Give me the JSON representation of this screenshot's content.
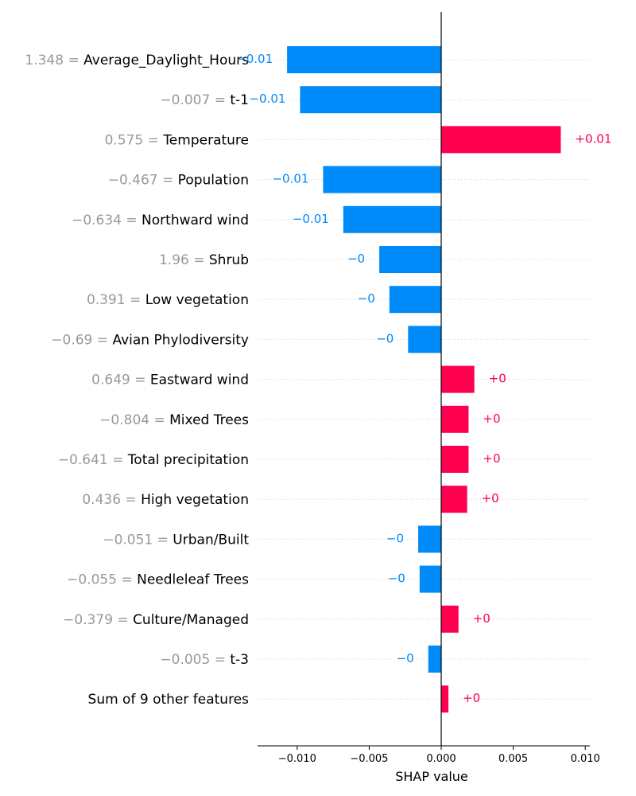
{
  "chart_data": {
    "type": "bar",
    "title": "",
    "xlabel": "SHAP value",
    "ylabel": "",
    "xlim": [
      -0.0128,
      0.0102
    ],
    "grid": "dotted horizontal",
    "xticks": [
      {
        "value": -0.01,
        "label": "−0.010"
      },
      {
        "value": -0.005,
        "label": "−0.005"
      },
      {
        "value": 0.0,
        "label": "0.000"
      },
      {
        "value": 0.005,
        "label": "0.005"
      },
      {
        "value": 0.01,
        "label": "0.010"
      }
    ],
    "colors": {
      "positive": "#ff0051",
      "negative": "#008bfb",
      "feature_value": "#999999",
      "label": "#000000",
      "grid": "#cccccc"
    },
    "rows": [
      {
        "value_text": "1.348 =",
        "feature": "Average_Daylight_Hours",
        "shap": -0.0107,
        "label": "−0.01"
      },
      {
        "value_text": "−0.007 =",
        "feature": "t-1",
        "shap": -0.0098,
        "label": "−0.01"
      },
      {
        "value_text": "0.575 =",
        "feature": "Temperature",
        "shap": 0.0083,
        "label": "+0.01"
      },
      {
        "value_text": "−0.467 =",
        "feature": "Population",
        "shap": -0.0082,
        "label": "−0.01"
      },
      {
        "value_text": "−0.634 =",
        "feature": "Northward wind",
        "shap": -0.0068,
        "label": "−0.01"
      },
      {
        "value_text": "1.96 =",
        "feature": "Shrub",
        "shap": -0.0043,
        "label": "−0"
      },
      {
        "value_text": "0.391 =",
        "feature": "Low vegetation",
        "shap": -0.0036,
        "label": "−0"
      },
      {
        "value_text": "−0.69 =",
        "feature": "Avian Phylodiversity",
        "shap": -0.0023,
        "label": "−0"
      },
      {
        "value_text": "0.649 =",
        "feature": "Eastward wind",
        "shap": 0.0023,
        "label": "+0"
      },
      {
        "value_text": "−0.804 =",
        "feature": "Mixed Trees",
        "shap": 0.0019,
        "label": "+0"
      },
      {
        "value_text": "−0.641 =",
        "feature": "Total precipitation",
        "shap": 0.0019,
        "label": "+0"
      },
      {
        "value_text": "0.436 =",
        "feature": "High vegetation",
        "shap": 0.0018,
        "label": "+0"
      },
      {
        "value_text": "−0.051 =",
        "feature": "Urban/Built",
        "shap": -0.0016,
        "label": "−0"
      },
      {
        "value_text": "−0.055 =",
        "feature": "Needleleaf Trees",
        "shap": -0.0015,
        "label": "−0"
      },
      {
        "value_text": "−0.379 =",
        "feature": "Culture/Managed",
        "shap": 0.0012,
        "label": "+0"
      },
      {
        "value_text": "−0.005 =",
        "feature": "t-3",
        "shap": -0.0009,
        "label": "−0"
      },
      {
        "value_text": "",
        "feature": "Sum of 9 other features",
        "shap": 0.0005,
        "label": "+0"
      }
    ]
  }
}
